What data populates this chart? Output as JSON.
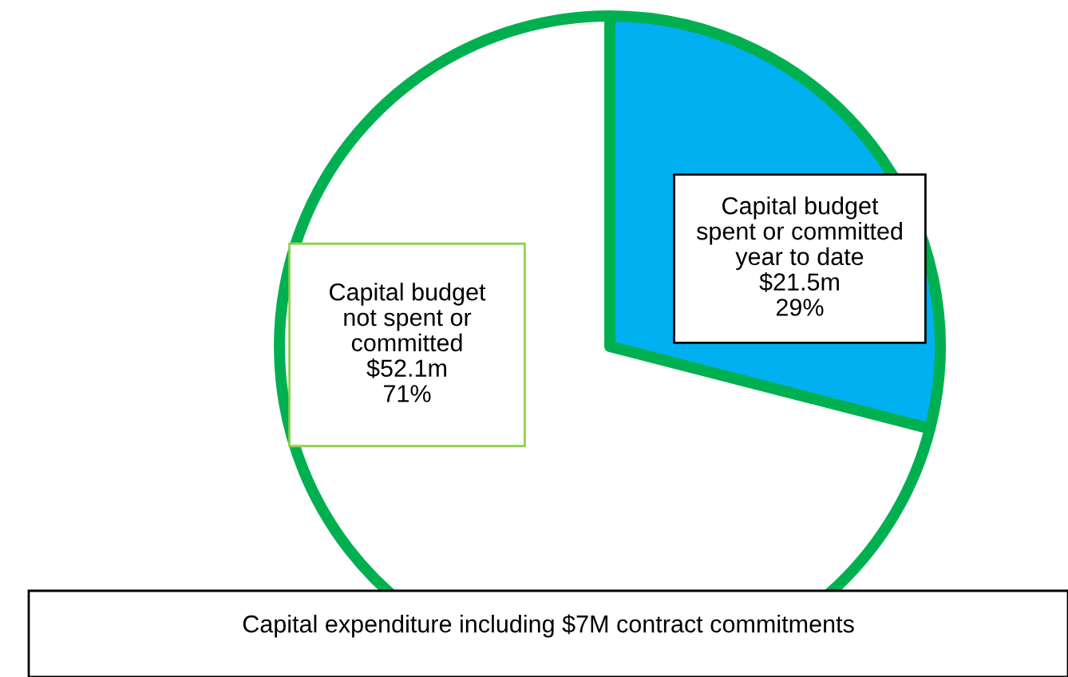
{
  "chart_data": {
    "type": "pie",
    "categories": [
      "Capital budget\nspent or committed\nyear to date",
      "Capital budget\nnot spent or\ncommitted"
    ],
    "values": [
      29,
      71
    ],
    "value_labels": [
      "$21.5m\n29%",
      "$52.1m\n71%"
    ],
    "colors": [
      "#00b0f0",
      "#ffffff"
    ],
    "annotations": [
      "Capital expenditure including $7M contract commitments"
    ],
    "legend": false
  }
}
